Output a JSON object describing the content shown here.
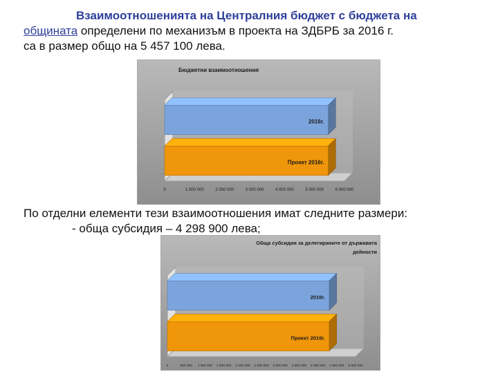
{
  "intro": {
    "line1_bold": "Взаимоотношенията на Централния бюджет с бюджета на",
    "line2_underlined": "общината",
    "line2_rest": " определени по механизъм в проекта на ЗДБРБ за 2016 г.",
    "line3": "са в размер общо на 5 457 100 лева."
  },
  "elements_intro": "По отделни елементи тези взаимоотношения имат следните размери:",
  "subsidy_item": "- обща субсидия – 4 298 900 лева;",
  "chart_data": [
    {
      "type": "bar",
      "orientation": "horizontal",
      "title": "Бюджетни взаимоотношения",
      "categories": [
        "2016г.",
        "Проект 2016г."
      ],
      "values": [
        5457100,
        5457100
      ],
      "colors": [
        "#7ba4dc",
        "#f0960a"
      ],
      "xlim": [
        0,
        6000000
      ],
      "x_ticks": [
        "0",
        "1 000 000",
        "2 000 000",
        "3 000 000",
        "4 000 000",
        "5 000 000",
        "6 000 000"
      ],
      "grid": false
    },
    {
      "type": "bar",
      "orientation": "horizontal",
      "title": "Обща субсидия за делегираните от държавата дейности",
      "title_lines": [
        "Обща субсидия за делегираните от държавата",
        "дейности"
      ],
      "categories": [
        "2016г.",
        "Проект 2016г."
      ],
      "values": [
        4298900,
        4298900
      ],
      "colors": [
        "#7ba4dc",
        "#f0960a"
      ],
      "xlim": [
        0,
        5000000
      ],
      "x_ticks": [
        "0",
        "500 000",
        "1 000 000",
        "1 500 000",
        "2 000 000",
        "2 500 000",
        "3 000 000",
        "3 500 000",
        "4 000 000",
        "4 500 000",
        "5 000 000"
      ],
      "grid": false
    }
  ]
}
